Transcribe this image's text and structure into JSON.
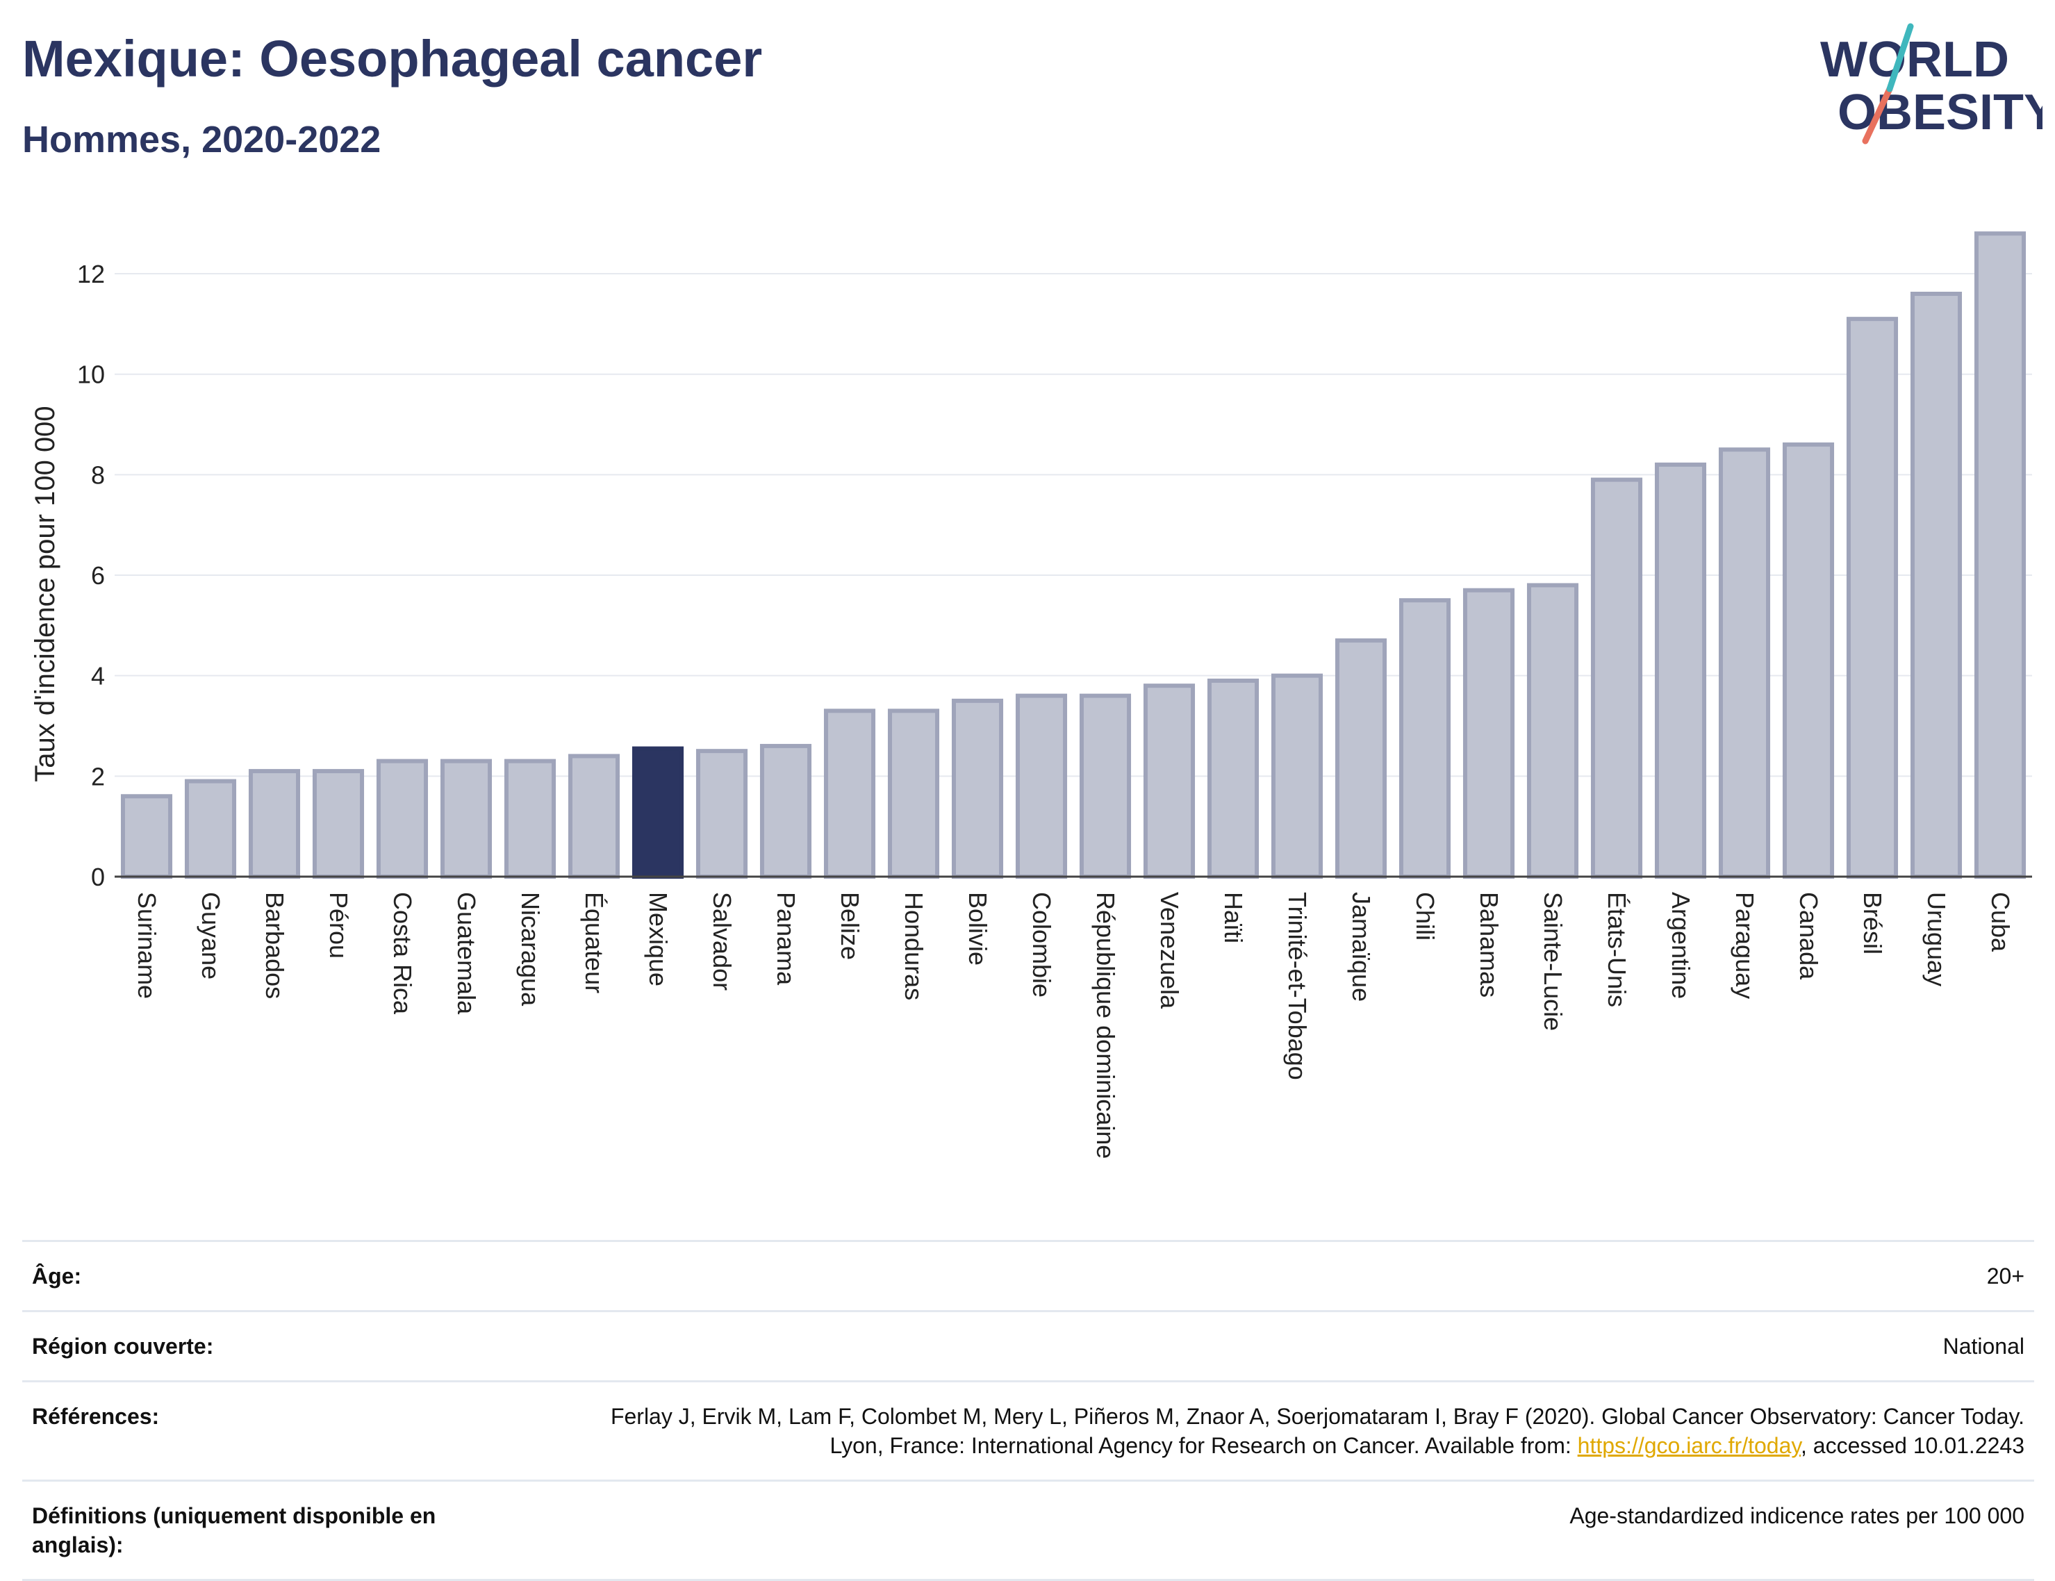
{
  "header": {
    "title": "Mexique: Oesophageal cancer",
    "subtitle": "Hommes, 2020-2022"
  },
  "logo": {
    "line1": "WORLD",
    "line2": "OBESITY"
  },
  "colors": {
    "highlight": "#2b3561",
    "bar": "#bfc3d1",
    "bar_border": "#9fa4ba"
  },
  "chart_data": {
    "type": "bar",
    "title": "Mexique: Oesophageal cancer",
    "subtitle": "Hommes, 2020-2022",
    "xlabel": "",
    "ylabel": "Taux d'incidence pour 100 000",
    "ylim": [
      0,
      13.3
    ],
    "yticks": [
      0,
      2,
      4,
      6,
      8,
      10,
      12
    ],
    "grid": true,
    "highlight": "Mexique",
    "categories": [
      "Suriname",
      "Guyane",
      "Barbados",
      "Pérou",
      "Costa Rica",
      "Guatemala",
      "Nicaragua",
      "Équateur",
      "Mexique",
      "Salvador",
      "Panama",
      "Belize",
      "Honduras",
      "Bolivie",
      "Colombie",
      "République dominicaine",
      "Venezuela",
      "Haïti",
      "Trinité-et-Tobago",
      "Jamaïque",
      "Chili",
      "Bahamas",
      "Sainte-Lucie",
      "États-Unis",
      "Argentine",
      "Paraguay",
      "Canada",
      "Brésil",
      "Uruguay",
      "Cuba"
    ],
    "values": [
      1.6,
      1.9,
      2.1,
      2.1,
      2.3,
      2.3,
      2.3,
      2.4,
      2.55,
      2.5,
      2.6,
      3.3,
      3.3,
      3.5,
      3.6,
      3.6,
      3.8,
      3.9,
      4.0,
      4.7,
      5.5,
      5.7,
      5.8,
      7.9,
      8.2,
      8.5,
      8.6,
      11.1,
      11.6,
      12.8
    ]
  },
  "meta": {
    "age": {
      "label": "Âge:",
      "value": "20+"
    },
    "region": {
      "label": "Région couverte:",
      "value": "National"
    },
    "references": {
      "label": "Références:",
      "text_before": "Ferlay J, Ervik M, Lam F, Colombet M, Mery L, Piñeros M, Znaor A, Soerjomataram I, Bray F (2020). Global Cancer Observatory: Cancer Today. Lyon, France: International Agency for Research on Cancer. Available from: ",
      "link": "https://gco.iarc.fr/today",
      "text_after": ", accessed 10.01.2243"
    },
    "definitions": {
      "label": "Définitions (uniquement disponible en anglais):",
      "value": "Age-standardized indicence rates per 100 000"
    }
  }
}
